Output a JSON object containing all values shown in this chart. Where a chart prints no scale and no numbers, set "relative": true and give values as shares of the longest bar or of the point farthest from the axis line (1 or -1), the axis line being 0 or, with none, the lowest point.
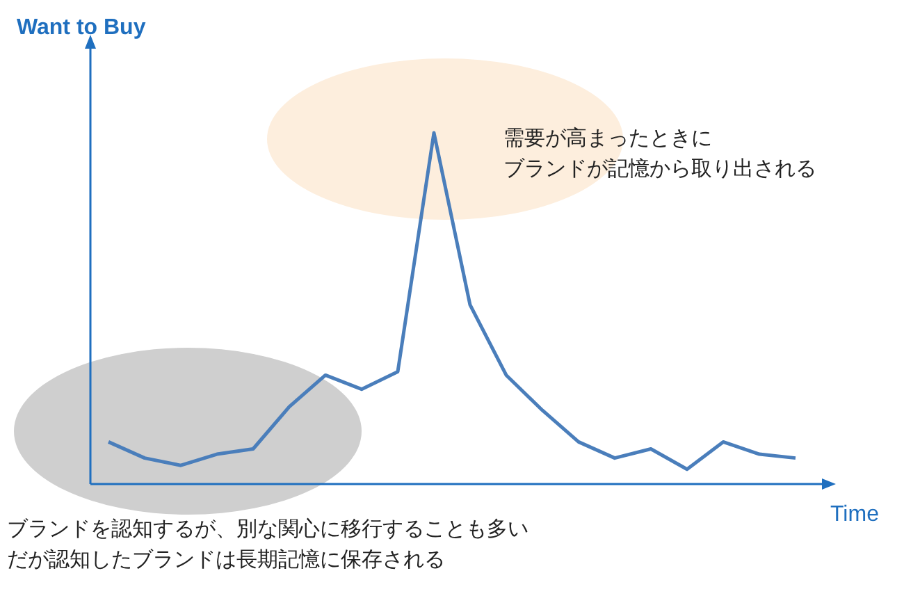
{
  "chart_data": {
    "type": "line",
    "relative": true,
    "xlabel": "Time",
    "ylabel": "Want to Buy",
    "annotations": [
      "需要が高まったときに",
      "ブランドが記憶から取り出される",
      "ブランドを認知するが、別な関心に移行することも多い",
      "だが認知したブランドは長期記憶に保存される"
    ],
    "categories": [
      null,
      null,
      null,
      null,
      null,
      null,
      null,
      null,
      null,
      null,
      null,
      null,
      null,
      null,
      null,
      null,
      null,
      null,
      null,
      null
    ],
    "series": [
      {
        "color": "#4a7ebb",
        "values": [
          0.12,
          0.074,
          0.053,
          0.085,
          0.1,
          0.22,
          0.31,
          0.27,
          0.32,
          1,
          0.51,
          0.31,
          0.21,
          0.12,
          0.074,
          0.1,
          0.042,
          0.12,
          0.085,
          0.074
        ]
      }
    ],
    "marker": "none",
    "line_style": "solid"
  }
}
